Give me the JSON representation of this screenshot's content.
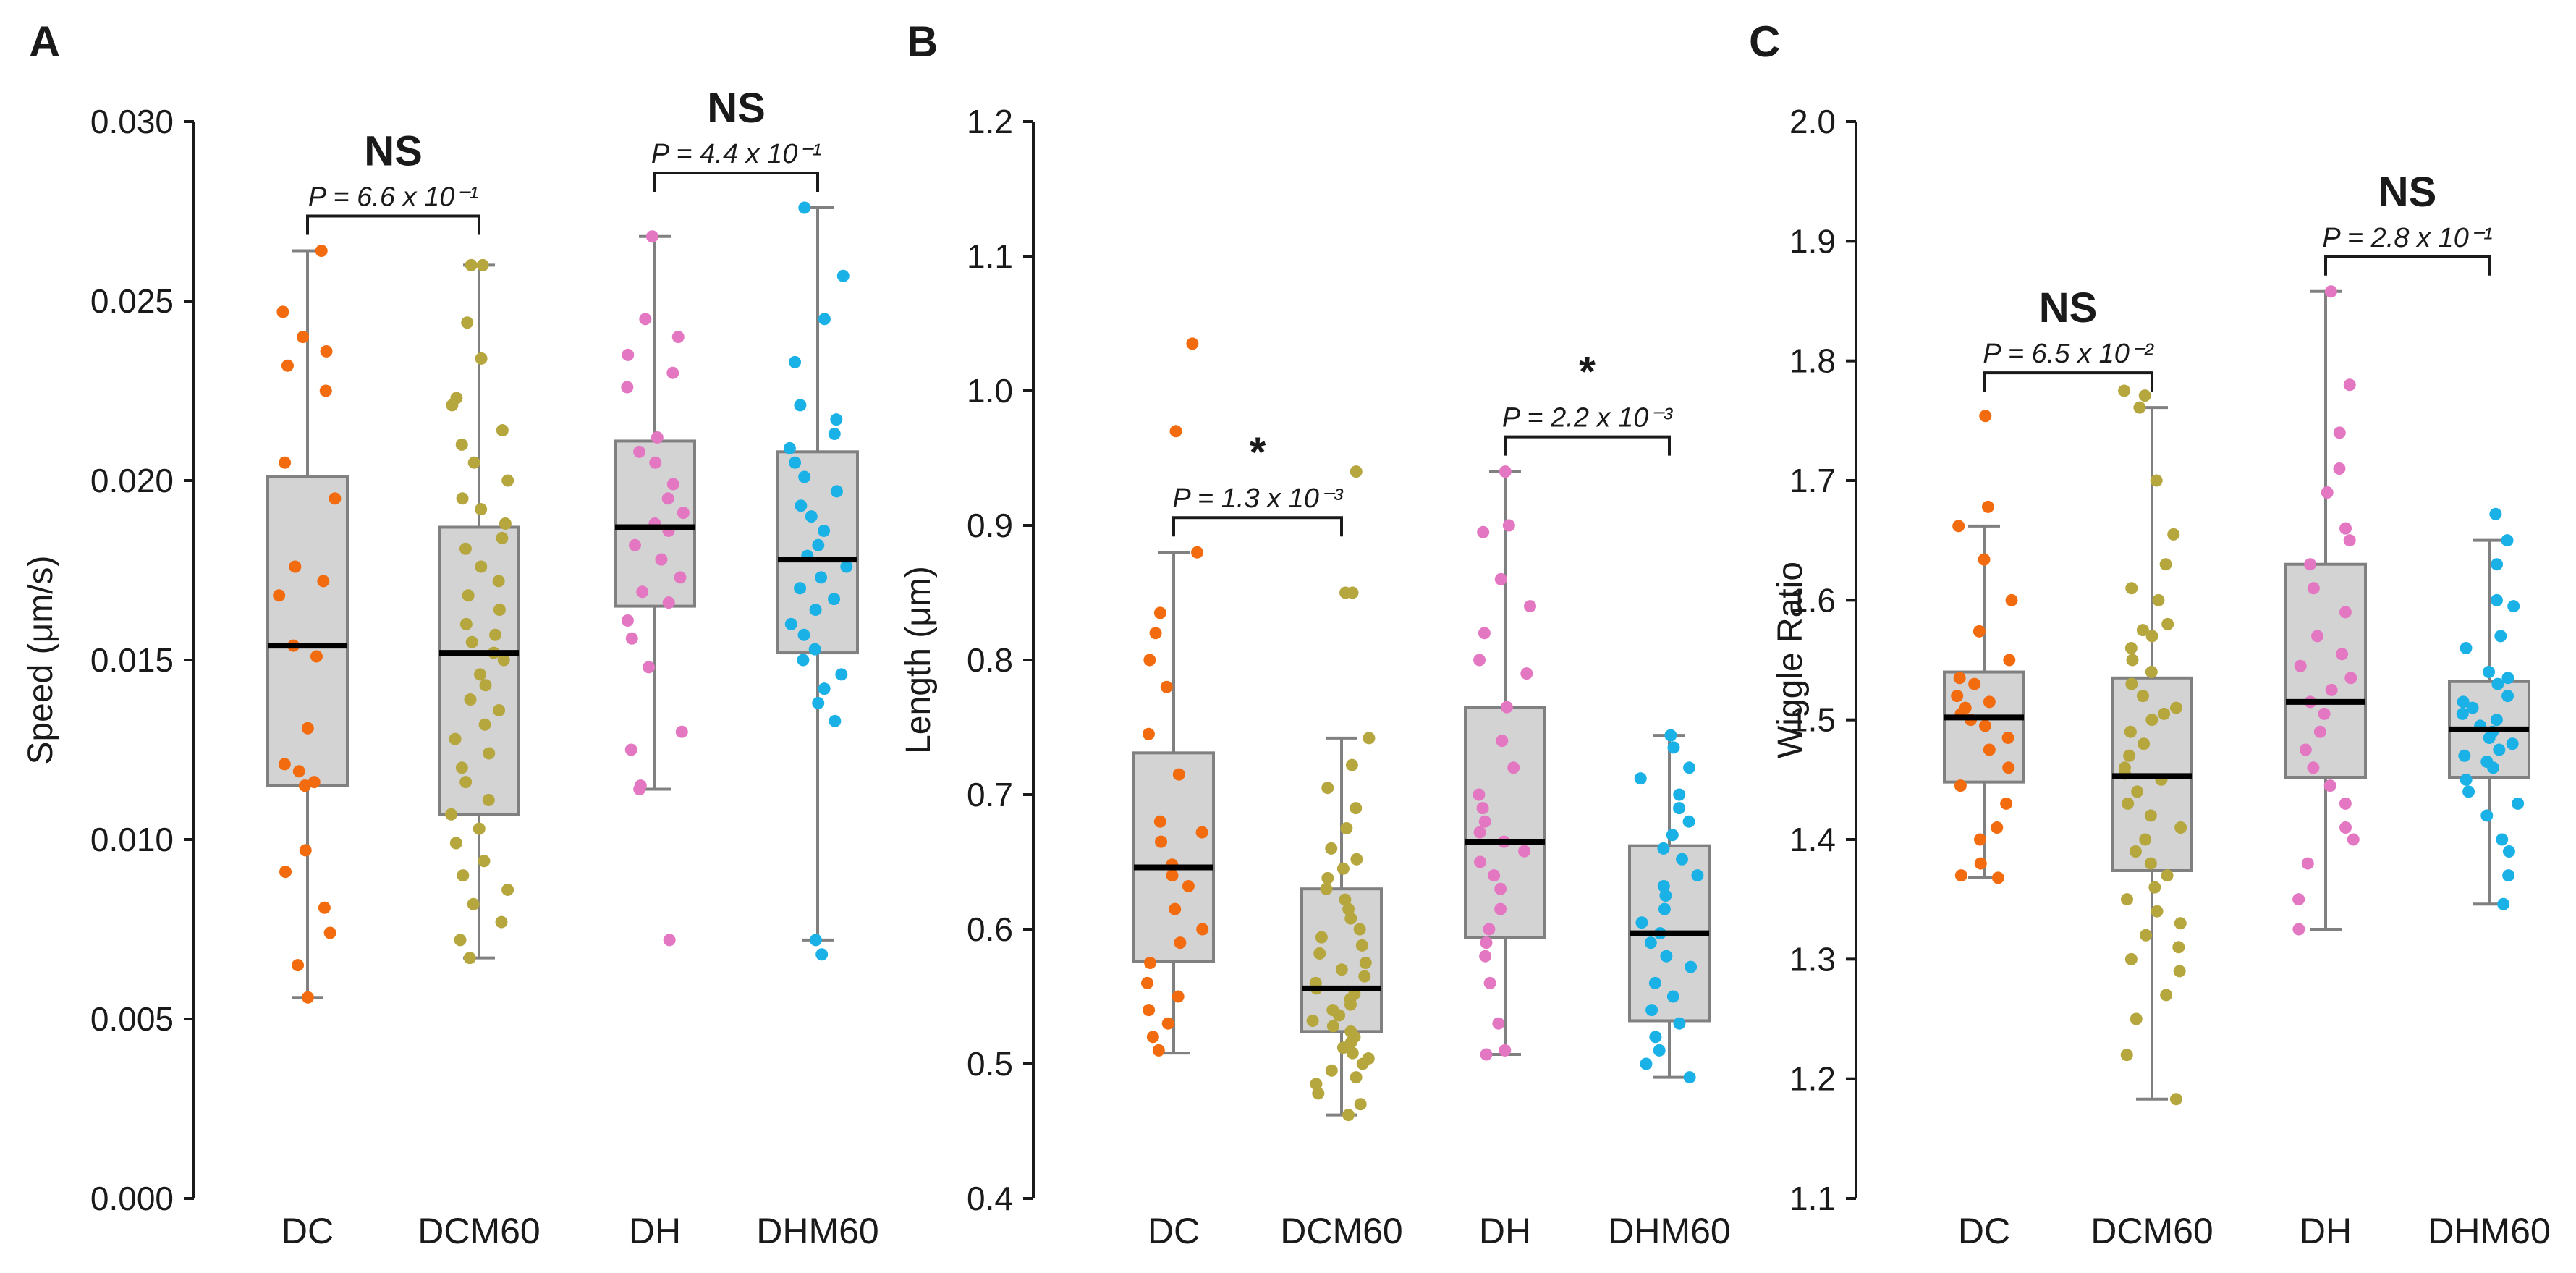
{
  "chart_data": [
    {
      "type": "box",
      "panel": "A",
      "ylabel": "Speed (μm/s)",
      "ylim": [
        0.0,
        0.03
      ],
      "yticks": [
        "0.000",
        "0.005",
        "0.010",
        "0.015",
        "0.020",
        "0.025",
        "0.030"
      ],
      "yticks_values": [
        0.0,
        0.005,
        0.01,
        0.015,
        0.02,
        0.025,
        0.03
      ],
      "categories": [
        "DC",
        "DCM60",
        "DH",
        "DHM60"
      ],
      "colors": [
        "#f26b0f",
        "#b5a63e",
        "#e377c2",
        "#1ab2e6"
      ],
      "boxes": [
        {
          "q1": 0.0115,
          "median": 0.0154,
          "q3": 0.0201,
          "lo": 0.0056,
          "hi": 0.0264
        },
        {
          "q1": 0.0107,
          "median": 0.0152,
          "q3": 0.0187,
          "lo": 0.0067,
          "hi": 0.026
        },
        {
          "q1": 0.0165,
          "median": 0.0187,
          "q3": 0.0211,
          "lo": 0.0114,
          "hi": 0.0268
        },
        {
          "q1": 0.0152,
          "median": 0.0178,
          "q3": 0.0208,
          "lo": 0.0072,
          "hi": 0.0276
        }
      ],
      "points": [
        [
          0.0264,
          0.0247,
          0.024,
          0.0236,
          0.0232,
          0.0225,
          0.0205,
          0.0195,
          0.0176,
          0.0172,
          0.0168,
          0.0154,
          0.0151,
          0.0131,
          0.0121,
          0.0119,
          0.0116,
          0.0115,
          0.0097,
          0.0091,
          0.0081,
          0.0074,
          0.0065,
          0.0056
        ],
        [
          0.026,
          0.026,
          0.0244,
          0.0234,
          0.0223,
          0.0221,
          0.0214,
          0.021,
          0.0205,
          0.02,
          0.0195,
          0.0192,
          0.0188,
          0.0184,
          0.0181,
          0.0176,
          0.0172,
          0.0168,
          0.0164,
          0.016,
          0.0157,
          0.0155,
          0.0152,
          0.015,
          0.0146,
          0.0143,
          0.0139,
          0.0136,
          0.0132,
          0.0128,
          0.0124,
          0.012,
          0.0116,
          0.0111,
          0.0107,
          0.0103,
          0.0099,
          0.0094,
          0.009,
          0.0086,
          0.0082,
          0.0077,
          0.0072,
          0.0067
        ],
        [
          0.0268,
          0.0245,
          0.024,
          0.0235,
          0.023,
          0.0226,
          0.0212,
          0.0208,
          0.0205,
          0.0199,
          0.0195,
          0.0191,
          0.0188,
          0.0186,
          0.0182,
          0.0178,
          0.0173,
          0.0169,
          0.0166,
          0.0161,
          0.0156,
          0.0148,
          0.013,
          0.0125,
          0.0115,
          0.0114,
          0.0072
        ],
        [
          0.0276,
          0.0257,
          0.0245,
          0.0233,
          0.0221,
          0.0217,
          0.0213,
          0.0209,
          0.0205,
          0.0201,
          0.0197,
          0.0193,
          0.019,
          0.0186,
          0.0182,
          0.0179,
          0.0176,
          0.0173,
          0.017,
          0.0167,
          0.0164,
          0.016,
          0.0157,
          0.0153,
          0.015,
          0.0146,
          0.0142,
          0.0138,
          0.0133,
          0.0072,
          0.0068
        ]
      ],
      "comparisons": [
        {
          "from": 0,
          "to": 1,
          "p_text": "P = 6.6 x 10⁻¹",
          "sig": "NS"
        },
        {
          "from": 2,
          "to": 3,
          "p_text": "P = 4.4 x 10⁻¹",
          "sig": "NS"
        }
      ]
    },
    {
      "type": "box",
      "panel": "B",
      "ylabel": "Length (μm)",
      "ylim": [
        0.4,
        1.2
      ],
      "yticks": [
        "0.4",
        "0.5",
        "0.6",
        "0.7",
        "0.8",
        "0.9",
        "1.0",
        "1.1",
        "1.2"
      ],
      "yticks_values": [
        0.4,
        0.5,
        0.6,
        0.7,
        0.8,
        0.9,
        1.0,
        1.1,
        1.2
      ],
      "categories": [
        "DC",
        "DCM60",
        "DH",
        "DHM60"
      ],
      "colors": [
        "#f26b0f",
        "#b5a63e",
        "#e377c2",
        "#1ab2e6"
      ],
      "boxes": [
        {
          "q1": 0.576,
          "median": 0.646,
          "q3": 0.731,
          "lo": 0.508,
          "hi": 0.88
        },
        {
          "q1": 0.524,
          "median": 0.556,
          "q3": 0.63,
          "lo": 0.462,
          "hi": 0.742
        },
        {
          "q1": 0.594,
          "median": 0.665,
          "q3": 0.765,
          "lo": 0.507,
          "hi": 0.94
        },
        {
          "q1": 0.532,
          "median": 0.597,
          "q3": 0.662,
          "lo": 0.49,
          "hi": 0.744
        }
      ],
      "points": [
        [
          1.035,
          0.97,
          0.88,
          0.835,
          0.82,
          0.8,
          0.78,
          0.745,
          0.715,
          0.68,
          0.672,
          0.665,
          0.648,
          0.64,
          0.632,
          0.615,
          0.6,
          0.59,
          0.575,
          0.56,
          0.55,
          0.54,
          0.53,
          0.52,
          0.51
        ],
        [
          0.94,
          0.85,
          0.85,
          0.742,
          0.722,
          0.705,
          0.69,
          0.675,
          0.66,
          0.652,
          0.645,
          0.638,
          0.63,
          0.622,
          0.615,
          0.608,
          0.6,
          0.594,
          0.588,
          0.582,
          0.575,
          0.57,
          0.565,
          0.56,
          0.556,
          0.552,
          0.548,
          0.544,
          0.54,
          0.536,
          0.532,
          0.528,
          0.524,
          0.52,
          0.516,
          0.512,
          0.508,
          0.504,
          0.5,
          0.495,
          0.49,
          0.485,
          0.478,
          0.47,
          0.462
        ],
        [
          0.94,
          0.9,
          0.895,
          0.86,
          0.84,
          0.82,
          0.8,
          0.79,
          0.765,
          0.74,
          0.72,
          0.7,
          0.69,
          0.68,
          0.672,
          0.665,
          0.658,
          0.65,
          0.64,
          0.63,
          0.615,
          0.6,
          0.59,
          0.58,
          0.56,
          0.53,
          0.51,
          0.507
        ],
        [
          0.744,
          0.735,
          0.72,
          0.712,
          0.7,
          0.69,
          0.68,
          0.67,
          0.66,
          0.652,
          0.64,
          0.632,
          0.625,
          0.615,
          0.605,
          0.597,
          0.59,
          0.58,
          0.572,
          0.56,
          0.55,
          0.54,
          0.53,
          0.52,
          0.51,
          0.5,
          0.49
        ]
      ],
      "comparisons": [
        {
          "from": 0,
          "to": 1,
          "p_text": "P = 1.3 x 10⁻³",
          "sig": "*"
        },
        {
          "from": 2,
          "to": 3,
          "p_text": "P = 2.2 x 10⁻³",
          "sig": "*"
        }
      ]
    },
    {
      "type": "box",
      "panel": "C",
      "ylabel": "Wiggle Ratio",
      "ylim": [
        1.1,
        2.0
      ],
      "yticks": [
        "1.1",
        "1.2",
        "1.3",
        "1.4",
        "1.5",
        "1.6",
        "1.7",
        "1.8",
        "1.9",
        "2.0"
      ],
      "yticks_values": [
        1.1,
        1.2,
        1.3,
        1.4,
        1.5,
        1.6,
        1.7,
        1.8,
        1.9,
        2.0
      ],
      "categories": [
        "DC",
        "DCM60",
        "DH",
        "DHM60"
      ],
      "colors": [
        "#f26b0f",
        "#b5a63e",
        "#e377c2",
        "#1ab2e6"
      ],
      "boxes": [
        {
          "q1": 1.448,
          "median": 1.502,
          "q3": 1.54,
          "lo": 1.368,
          "hi": 1.662
        },
        {
          "q1": 1.374,
          "median": 1.453,
          "q3": 1.535,
          "lo": 1.183,
          "hi": 1.761
        },
        {
          "q1": 1.452,
          "median": 1.515,
          "q3": 1.63,
          "lo": 1.325,
          "hi": 1.858
        },
        {
          "q1": 1.452,
          "median": 1.492,
          "q3": 1.532,
          "lo": 1.346,
          "hi": 1.65
        }
      ],
      "points": [
        [
          1.754,
          1.678,
          1.662,
          1.634,
          1.6,
          1.574,
          1.55,
          1.535,
          1.53,
          1.52,
          1.515,
          1.51,
          1.505,
          1.5,
          1.495,
          1.485,
          1.475,
          1.46,
          1.445,
          1.43,
          1.41,
          1.4,
          1.38,
          1.37,
          1.368
        ],
        [
          1.775,
          1.771,
          1.761,
          1.7,
          1.655,
          1.63,
          1.61,
          1.6,
          1.58,
          1.575,
          1.57,
          1.56,
          1.55,
          1.54,
          1.53,
          1.52,
          1.51,
          1.505,
          1.5,
          1.49,
          1.48,
          1.47,
          1.46,
          1.455,
          1.45,
          1.44,
          1.43,
          1.42,
          1.41,
          1.4,
          1.39,
          1.38,
          1.37,
          1.36,
          1.35,
          1.34,
          1.33,
          1.32,
          1.31,
          1.3,
          1.29,
          1.27,
          1.25,
          1.22,
          1.183
        ],
        [
          1.858,
          1.78,
          1.74,
          1.71,
          1.69,
          1.66,
          1.65,
          1.63,
          1.61,
          1.59,
          1.57,
          1.555,
          1.545,
          1.535,
          1.525,
          1.515,
          1.505,
          1.49,
          1.475,
          1.46,
          1.445,
          1.43,
          1.41,
          1.4,
          1.38,
          1.35,
          1.325
        ],
        [
          1.672,
          1.65,
          1.63,
          1.6,
          1.595,
          1.57,
          1.56,
          1.54,
          1.535,
          1.53,
          1.52,
          1.515,
          1.51,
          1.505,
          1.5,
          1.495,
          1.49,
          1.485,
          1.48,
          1.475,
          1.47,
          1.465,
          1.46,
          1.45,
          1.44,
          1.43,
          1.42,
          1.4,
          1.39,
          1.37,
          1.346
        ]
      ],
      "comparisons": [
        {
          "from": 0,
          "to": 1,
          "p_text": "P = 6.5 x 10⁻²",
          "sig": "NS"
        },
        {
          "from": 2,
          "to": 3,
          "p_text": "P = 2.8 x 10⁻¹",
          "sig": "NS"
        }
      ]
    }
  ]
}
